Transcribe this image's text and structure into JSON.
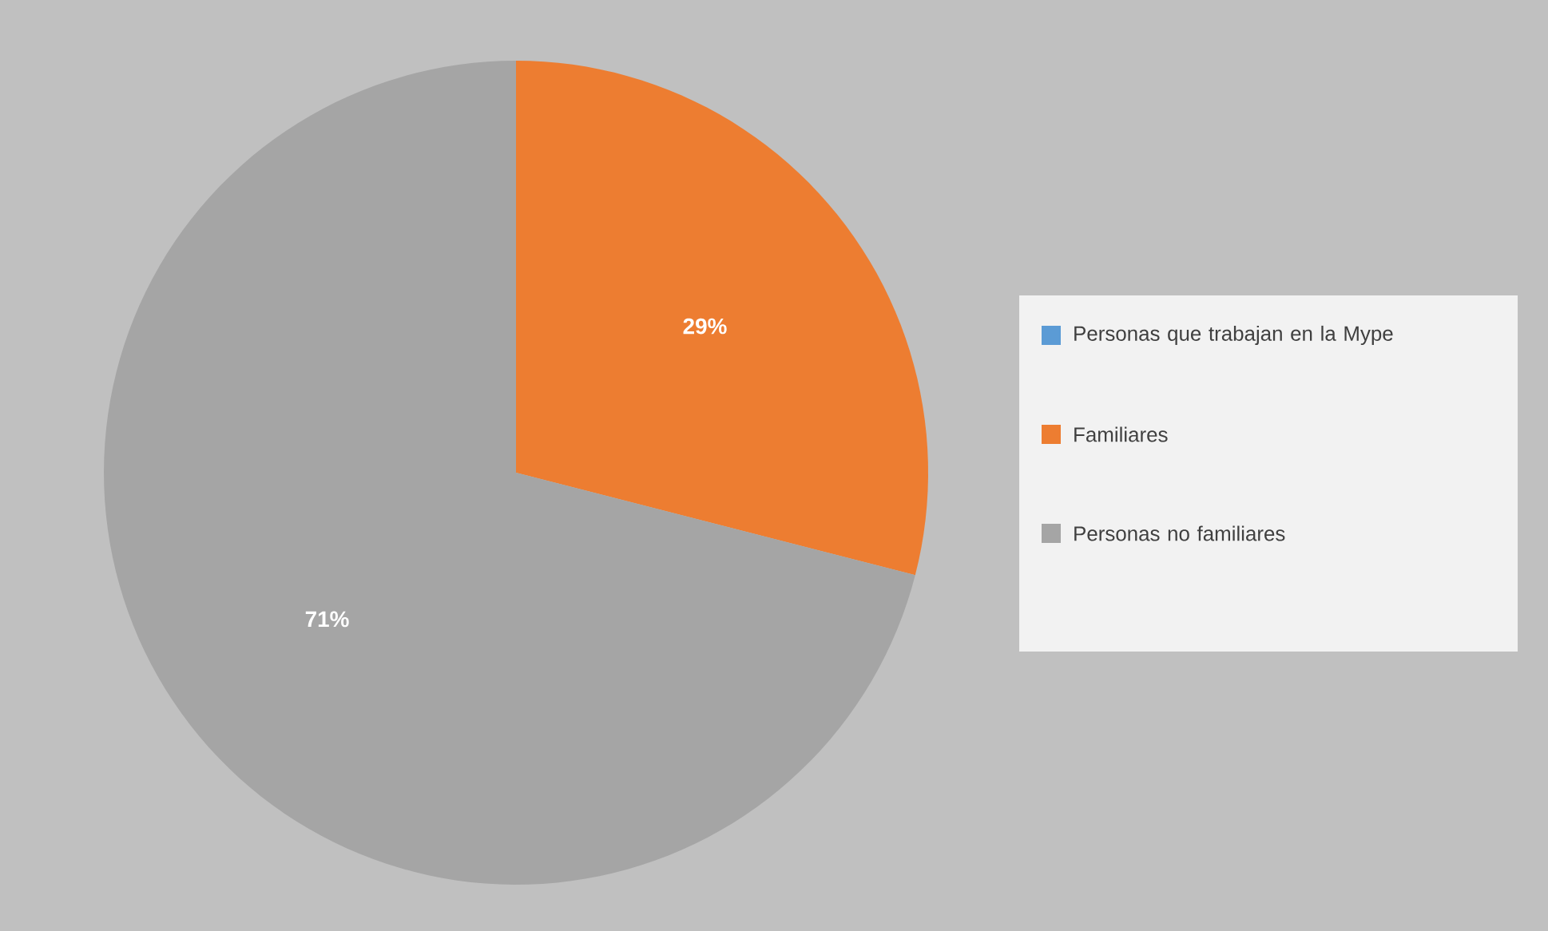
{
  "chart_data": {
    "type": "pie",
    "categories": [
      "Personas que trabajan en la Mype",
      "Familiares",
      "Personas no familiares"
    ],
    "values": [
      0,
      29,
      71
    ],
    "colors": [
      "#5b9bd5",
      "#ed7d31",
      "#a5a5a5"
    ],
    "value_labels": [
      null,
      "29%",
      "71%"
    ],
    "legend": "right"
  }
}
